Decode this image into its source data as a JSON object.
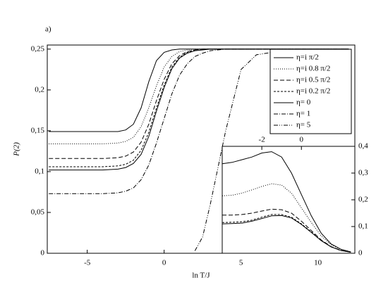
{
  "chart_data": [
    {
      "type": "line",
      "annotation": "a)",
      "x_label": "ln T/J",
      "y_label": "P(2)",
      "xlim": [
        -7.6,
        12.4
      ],
      "ylim": [
        0,
        0.255
      ],
      "xticks": [
        -5,
        0,
        5,
        10
      ],
      "yticks": [
        0,
        {
          "value": 0.05,
          "label": "0,05"
        },
        {
          "value": 0.1,
          "label": "0,1"
        },
        {
          "value": 0.15,
          "label": "0,15"
        },
        {
          "value": 0.2,
          "label": "0,2"
        },
        {
          "value": 0.25,
          "label": "0,25"
        }
      ],
      "legend": "upper right",
      "x": [
        -7.5,
        -6,
        -5,
        -4,
        -3,
        -2.5,
        -2,
        -1.5,
        -1,
        -0.5,
        0,
        0.5,
        1,
        1.5,
        2,
        2.5,
        3,
        4,
        5,
        6,
        8,
        10,
        12
      ],
      "series": [
        {
          "name": "η=i π/2",
          "color": "#000000",
          "style": "solid",
          "values": [
            0.149,
            0.149,
            0.149,
            0.149,
            0.149,
            0.151,
            0.158,
            0.178,
            0.21,
            0.236,
            0.246,
            0.249,
            0.25,
            0.25,
            0.25,
            0.25,
            0.25,
            0.25,
            0.25,
            0.25,
            0.25,
            0.25,
            0.25
          ]
        },
        {
          "name": "η=i 0.8 π/2",
          "color": "#000000",
          "style": "dotted",
          "values": [
            0.134,
            0.134,
            0.134,
            0.134,
            0.135,
            0.137,
            0.142,
            0.155,
            0.178,
            0.205,
            0.228,
            0.241,
            0.247,
            0.249,
            0.25,
            0.25,
            0.25,
            0.25,
            0.25,
            0.25,
            0.25,
            0.25,
            0.25
          ]
        },
        {
          "name": "η=i 0.5 π/2",
          "color": "#000000",
          "style": "dashed",
          "values": [
            0.116,
            0.116,
            0.116,
            0.116,
            0.117,
            0.119,
            0.124,
            0.136,
            0.158,
            0.187,
            0.213,
            0.232,
            0.242,
            0.247,
            0.249,
            0.25,
            0.25,
            0.25,
            0.25,
            0.25,
            0.25,
            0.25,
            0.25
          ]
        },
        {
          "name": "η=i 0.2 π/2",
          "color": "#000000",
          "style": "dense-dashed",
          "values": [
            0.106,
            0.106,
            0.106,
            0.106,
            0.107,
            0.109,
            0.114,
            0.126,
            0.148,
            0.178,
            0.206,
            0.228,
            0.24,
            0.246,
            0.249,
            0.25,
            0.25,
            0.25,
            0.25,
            0.25,
            0.25,
            0.25,
            0.25
          ]
        },
        {
          "name": "η= 0",
          "color": "#000000",
          "style": "solid",
          "values": [
            0.102,
            0.102,
            0.102,
            0.102,
            0.103,
            0.105,
            0.11,
            0.121,
            0.143,
            0.174,
            0.203,
            0.226,
            0.239,
            0.245,
            0.248,
            0.249,
            0.25,
            0.25,
            0.25,
            0.25,
            0.25,
            0.25,
            0.25
          ]
        },
        {
          "name": "η= 1",
          "color": "#000000",
          "style": "dashdot",
          "values": [
            0.073,
            0.073,
            0.073,
            0.073,
            0.074,
            0.076,
            0.08,
            0.09,
            0.108,
            0.135,
            0.165,
            0.195,
            0.218,
            0.232,
            0.241,
            0.245,
            0.248,
            0.25,
            0.25,
            0.25,
            0.25,
            0.25,
            0.25
          ]
        },
        {
          "name": "η= 5",
          "color": "#000000",
          "style": "dashdotdot",
          "values": [
            null,
            null,
            null,
            null,
            null,
            null,
            null,
            null,
            null,
            null,
            null,
            null,
            null,
            null,
            0.003,
            0.02,
            0.06,
            0.15,
            0.225,
            0.243,
            0.249,
            0.25,
            0.25
          ]
        }
      ]
    },
    {
      "type": "line",
      "x_axis_position": "top",
      "y_axis_position": "right",
      "xlim": [
        -4,
        2.7
      ],
      "ylim": [
        0,
        0.4
      ],
      "xticks": [
        -2,
        0
      ],
      "yticks": [
        0,
        {
          "value": 0.1,
          "label": "0,1"
        },
        {
          "value": 0.2,
          "label": "0,2"
        },
        {
          "value": 0.3,
          "label": "0,3"
        },
        {
          "value": 0.4,
          "label": "0,4"
        }
      ],
      "x": [
        -4,
        -3.5,
        -3,
        -2.5,
        -2,
        -1.5,
        -1,
        -0.5,
        0,
        0.5,
        1,
        1.5,
        2,
        2.5
      ],
      "series": [
        {
          "color": "#000000",
          "style": "solid",
          "values": [
            0.335,
            0.34,
            0.35,
            0.36,
            0.375,
            0.38,
            0.36,
            0.3,
            0.22,
            0.14,
            0.075,
            0.035,
            0.015,
            0.005
          ]
        },
        {
          "color": "#000000",
          "style": "dotted",
          "values": [
            0.215,
            0.217,
            0.225,
            0.237,
            0.25,
            0.26,
            0.255,
            0.225,
            0.17,
            0.115,
            0.065,
            0.032,
            0.014,
            0.005
          ]
        },
        {
          "color": "#000000",
          "style": "dashed",
          "values": [
            0.143,
            0.143,
            0.145,
            0.15,
            0.158,
            0.165,
            0.163,
            0.15,
            0.12,
            0.085,
            0.05,
            0.025,
            0.011,
            0.004
          ]
        },
        {
          "color": "#000000",
          "style": "dense-dashed",
          "values": [
            0.115,
            0.116,
            0.118,
            0.124,
            0.135,
            0.145,
            0.145,
            0.135,
            0.11,
            0.08,
            0.048,
            0.024,
            0.01,
            0.004
          ]
        },
        {
          "color": "#000000",
          "style": "solid",
          "values": [
            0.11,
            0.111,
            0.113,
            0.12,
            0.13,
            0.14,
            0.141,
            0.132,
            0.108,
            0.078,
            0.047,
            0.024,
            0.01,
            0.004
          ]
        }
      ]
    }
  ]
}
